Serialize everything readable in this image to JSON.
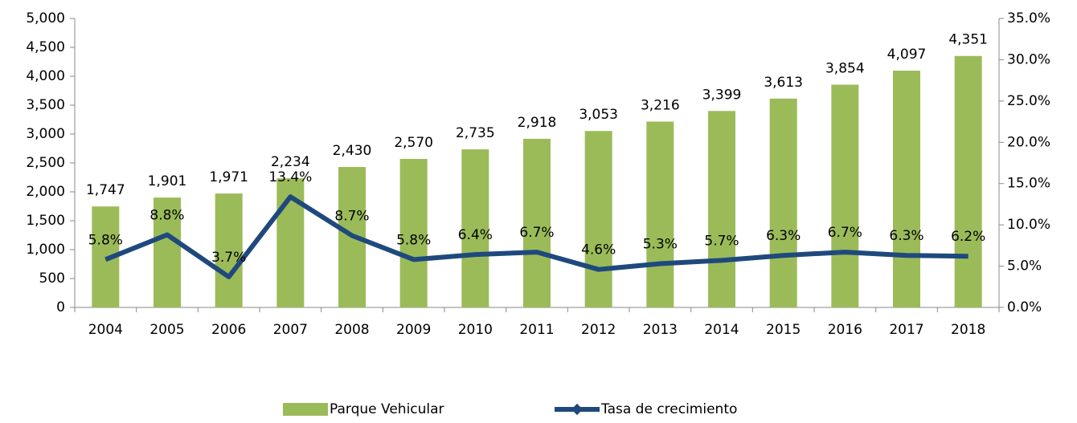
{
  "chart_data": {
    "type": "bar",
    "categories": [
      "2004",
      "2005",
      "2006",
      "2007",
      "2008",
      "2009",
      "2010",
      "2011",
      "2012",
      "2013",
      "2014",
      "2015",
      "2016",
      "2017",
      "2018"
    ],
    "series": [
      {
        "name": "Parque Vehicular",
        "type": "bar",
        "color": "#9bbb59",
        "values": [
          1747,
          1901,
          1971,
          2234,
          2430,
          2570,
          2735,
          2918,
          3053,
          3216,
          3399,
          3613,
          3854,
          4097,
          4351
        ],
        "value_labels": [
          "1,747",
          "1,901",
          "1,971",
          "2,234",
          "2,430",
          "2,570",
          "2,735",
          "2,918",
          "3,053",
          "3,216",
          "3,399",
          "3,613",
          "3,854",
          "4,097",
          "4,351"
        ]
      },
      {
        "name": "Tasa de crecimiento",
        "type": "line",
        "axis": "y2",
        "color": "#1f497d",
        "values": [
          5.8,
          8.8,
          3.7,
          13.4,
          8.7,
          5.8,
          6.4,
          6.7,
          4.6,
          5.3,
          5.7,
          6.3,
          6.7,
          6.3,
          6.2
        ],
        "value_labels": [
          "5.8%",
          "8.8%",
          "3.7%",
          "13.4%",
          "8.7%",
          "5.8%",
          "6.4%",
          "6.7%",
          "4.6%",
          "5.3%",
          "5.7%",
          "6.3%",
          "6.7%",
          "6.3%",
          "6.2%"
        ]
      }
    ],
    "ylim": [
      0,
      5000
    ],
    "yticks": [
      0,
      500,
      {
        "value": 1000,
        "label": "1,000"
      },
      {
        "value": 1500,
        "label": "1,500"
      },
      {
        "value": 2000,
        "label": "2,000"
      },
      {
        "value": 2500,
        "label": "2,500"
      },
      {
        "value": 3000,
        "label": "3,000"
      },
      {
        "value": 3500,
        "label": "3,500"
      },
      {
        "value": 4000,
        "label": "4,000"
      },
      {
        "value": 4500,
        "label": "4,500"
      },
      {
        "value": 5000,
        "label": "5,000"
      }
    ],
    "y2lim": [
      0,
      35
    ],
    "y2ticks": [
      {
        "value": 0,
        "label": "0.0%"
      },
      {
        "value": 5,
        "label": "5.0%"
      },
      {
        "value": 10,
        "label": "10.0%"
      },
      {
        "value": 15,
        "label": "15.0%"
      },
      {
        "value": 20,
        "label": "20.0%"
      },
      {
        "value": 25,
        "label": "25.0%"
      },
      {
        "value": 30,
        "label": "30.0%"
      },
      {
        "value": 35,
        "label": "35.0%"
      }
    ],
    "legend": "bottom"
  }
}
